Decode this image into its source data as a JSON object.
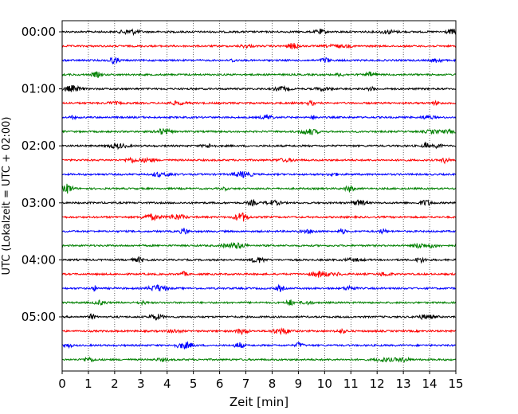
{
  "chart_data": {
    "type": "line",
    "title": "",
    "xlabel": "Zeit  [min]",
    "ylabel": "UTC (Lokalzeit = UTC + 02:00)",
    "xlim": [
      0,
      15
    ],
    "x_ticks": [
      "0",
      "1",
      "2",
      "3",
      "4",
      "5",
      "6",
      "7",
      "8",
      "9",
      "10",
      "11",
      "12",
      "13",
      "14",
      "15"
    ],
    "y_tick_labels": [
      "00:00",
      "01:00",
      "02:00",
      "03:00",
      "04:00",
      "05:00"
    ],
    "rows_per_hour": 4,
    "row_count": 24,
    "row_colors": [
      "#000000",
      "#ff0000",
      "#0000ff",
      "#008000"
    ],
    "vertical_grid": "dotted at each minute",
    "series_description": "helicorder seismogram traces, 15 minutes per row"
  }
}
